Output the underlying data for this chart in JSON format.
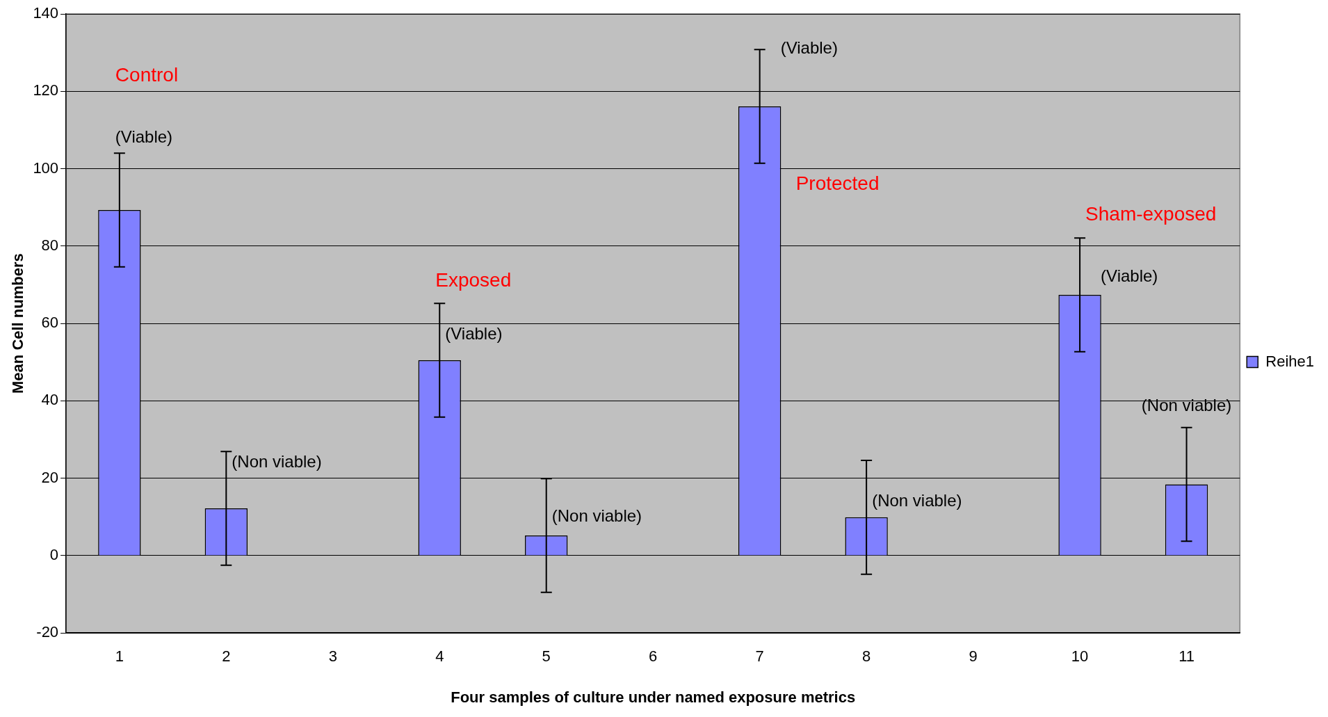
{
  "chart_data": {
    "type": "bar",
    "xlabel": "Four samples of culture under named exposure metrics",
    "ylabel": "Mean Cell numbers",
    "categories": [
      "1",
      "2",
      "3",
      "4",
      "5",
      "6",
      "7",
      "8",
      "9",
      "10",
      "11"
    ],
    "series": [
      {
        "name": "Reihe1",
        "color": "#8080ff",
        "values": [
          89.3,
          12.2,
          null,
          50.5,
          5.2,
          null,
          116.1,
          9.9,
          null,
          67.4,
          18.4
        ],
        "errors": [
          14.7,
          14.7,
          null,
          14.7,
          14.7,
          null,
          14.7,
          14.7,
          null,
          14.7,
          14.7
        ]
      }
    ],
    "ylim": [
      -20,
      140
    ],
    "yticks": [
      -20,
      0,
      20,
      40,
      60,
      80,
      100,
      120,
      140
    ],
    "grid": "y",
    "legend": "right",
    "annotations": [
      "Control",
      "(Viable)",
      "(Non viable)",
      "Exposed",
      "(Viable)",
      "(Non viable)",
      "(Viable)",
      "Protected",
      "(Non viable)",
      "Sham-exposed",
      "(Viable)",
      "(Non viable)"
    ]
  }
}
